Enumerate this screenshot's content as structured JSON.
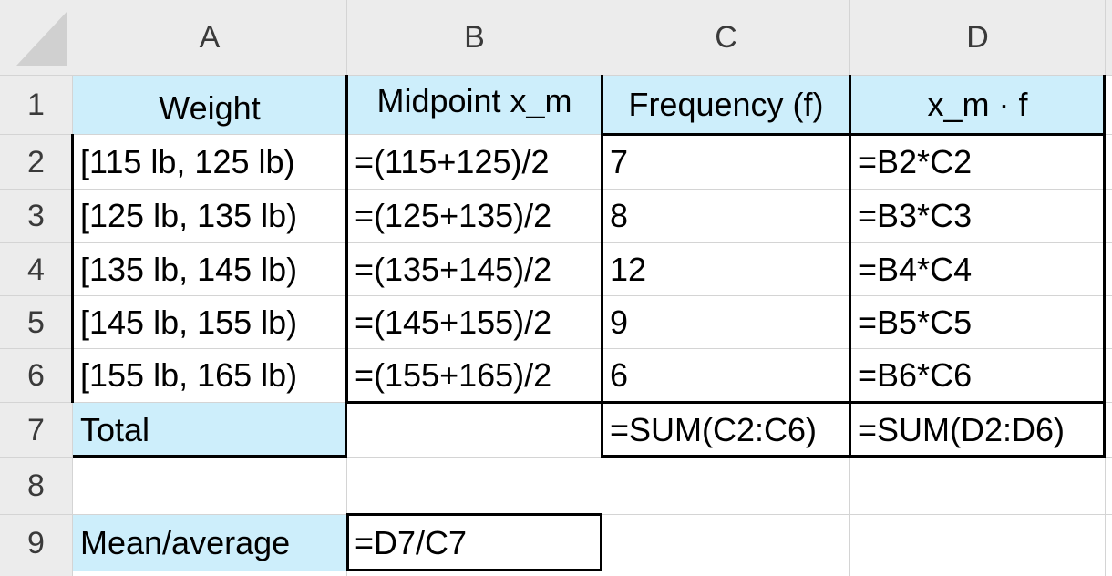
{
  "columns": [
    "A",
    "B",
    "C",
    "D"
  ],
  "rows": [
    "1",
    "2",
    "3",
    "4",
    "5",
    "6",
    "7",
    "8",
    "9"
  ],
  "header_row": {
    "a": "Weight",
    "b": "Midpoint x_m",
    "c": "Frequency (f)",
    "d": "x_m · f"
  },
  "data_rows": [
    {
      "a": "[115 lb, 125 lb)",
      "b": "=(115+125)/2",
      "c": "7",
      "d": "=B2*C2"
    },
    {
      "a": "[125 lb, 135 lb)",
      "b": "=(125+135)/2",
      "c": "8",
      "d": "=B3*C3"
    },
    {
      "a": "[135 lb, 145 lb)",
      "b": "=(135+145)/2",
      "c": "12",
      "d": "=B4*C4"
    },
    {
      "a": "[145 lb, 155 lb)",
      "b": "=(145+155)/2",
      "c": "9",
      "d": "=B5*C5"
    },
    {
      "a": "[155 lb, 165 lb)",
      "b": "=(155+165)/2",
      "c": "6",
      "d": "=B6*C6"
    }
  ],
  "total_row": {
    "a": "Total",
    "b": "",
    "c": "=SUM(C2:C6)",
    "d": "=SUM(D2:D6)"
  },
  "mean_row": {
    "a": "Mean/average",
    "b": "=D7/C7"
  },
  "colors": {
    "highlight": "#cdeefb",
    "header_bg": "#ececec",
    "gridline": "#d4d4d4",
    "border": "#000000"
  }
}
